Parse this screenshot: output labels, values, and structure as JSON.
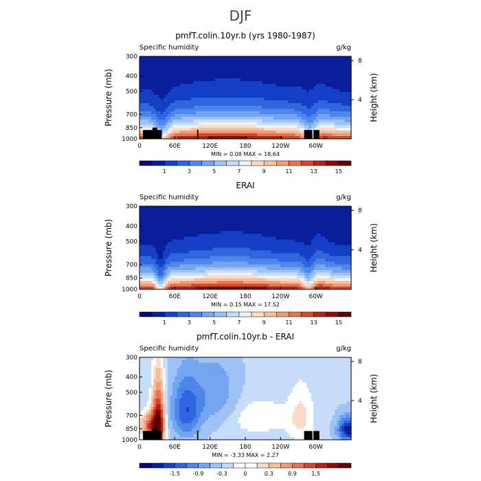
{
  "figure": {
    "title": "DJF"
  },
  "chart_data": [
    {
      "type": "heatmap",
      "title": "pmfT.colin.10yr.b (yrs 1980-1987)",
      "left_label": "Specific humidity",
      "right_label": "g/kg",
      "ylabel": "Pressure (mb)",
      "y2label": "Height (km)",
      "x_ticks": [
        "0",
        "60E",
        "120E",
        "180",
        "120W",
        "60W"
      ],
      "x_tick_values": [
        0,
        60,
        120,
        180,
        240,
        300
      ],
      "xlim": [
        0,
        360
      ],
      "y_ticks": [
        "300",
        "400",
        "500",
        "700",
        "850",
        "1000"
      ],
      "y_tick_values": [
        300,
        400,
        500,
        700,
        850,
        1000
      ],
      "y_scale": "log",
      "ylim": [
        1000,
        300
      ],
      "height_ticks": [
        "8",
        "4"
      ],
      "height_tick_values": [
        8,
        4
      ],
      "stats": "MIN =    0.08   MAX =   18.64",
      "min": 0.08,
      "max": 18.64,
      "colorbar_labels": [
        "1",
        "3",
        "5",
        "7",
        "9",
        "11",
        "13",
        "15"
      ],
      "colorbar_levels": [
        0,
        1,
        2,
        3,
        4,
        5,
        6,
        7,
        8,
        9,
        10,
        11,
        12,
        13,
        14,
        15,
        16
      ],
      "field": "model"
    },
    {
      "type": "heatmap",
      "title": "ERAI",
      "left_label": "Specific humidity",
      "right_label": "g/kg",
      "ylabel": "Pressure (mb)",
      "y2label": "Height (km)",
      "x_ticks": [
        "0",
        "60E",
        "120E",
        "180",
        "120W",
        "60W"
      ],
      "x_tick_values": [
        0,
        60,
        120,
        180,
        240,
        300
      ],
      "xlim": [
        0,
        360
      ],
      "y_ticks": [
        "300",
        "400",
        "500",
        "700",
        "850",
        "1000"
      ],
      "y_tick_values": [
        300,
        400,
        500,
        700,
        850,
        1000
      ],
      "y_scale": "log",
      "ylim": [
        1000,
        300
      ],
      "height_ticks": [
        "8",
        "4"
      ],
      "height_tick_values": [
        8,
        4
      ],
      "stats": "MIN =    0.15   MAX =   17.52",
      "min": 0.15,
      "max": 17.52,
      "colorbar_labels": [
        "1",
        "3",
        "5",
        "7",
        "9",
        "11",
        "13",
        "15"
      ],
      "colorbar_levels": [
        0,
        1,
        2,
        3,
        4,
        5,
        6,
        7,
        8,
        9,
        10,
        11,
        12,
        13,
        14,
        15,
        16
      ],
      "field": "obs"
    },
    {
      "type": "heatmap",
      "title": "pmfT.colin.10yr.b - ERAI",
      "left_label": "Specific humidity",
      "right_label": "g/kg",
      "ylabel": "Pressure (mb)",
      "y2label": "Height (km)",
      "x_ticks": [
        "0",
        "60E",
        "120E",
        "180",
        "120W",
        "60W"
      ],
      "x_tick_values": [
        0,
        60,
        120,
        180,
        240,
        300
      ],
      "xlim": [
        0,
        360
      ],
      "y_ticks": [
        "300",
        "400",
        "500",
        "700",
        "850",
        "1000"
      ],
      "y_tick_values": [
        300,
        400,
        500,
        700,
        850,
        1000
      ],
      "y_scale": "log",
      "ylim": [
        1000,
        300
      ],
      "height_ticks": [
        "8",
        "4"
      ],
      "height_tick_values": [
        8,
        4
      ],
      "stats": "MIN =   -3.33   MAX =    2.27",
      "min": -3.33,
      "max": 2.27,
      "colorbar_labels": [
        "-1.5",
        "-0.9",
        "-0.3",
        "0",
        "0.3",
        "0.9",
        "1.5"
      ],
      "colorbar_levels": [
        -2.1,
        -1.8,
        -1.5,
        -1.2,
        -0.9,
        -0.6,
        -0.3,
        -0.1,
        0,
        0.1,
        0.3,
        0.6,
        0.9,
        1.2,
        1.5,
        1.8,
        2.1
      ],
      "field": "diff"
    }
  ],
  "colors": {
    "scale": [
      "#08086e",
      "#0a1e9c",
      "#1440c8",
      "#2e66e0",
      "#4f86ea",
      "#74a5f0",
      "#9ec2f5",
      "#c6dcf8",
      "#eef2f8",
      "#f8dcc8",
      "#f5bea0",
      "#f09c78",
      "#e67450",
      "#d24a2e",
      "#b42418",
      "#8c0c0c",
      "#5c0404"
    ],
    "diff_scale": [
      "#08086e",
      "#0a1e9c",
      "#1440c8",
      "#2e66e0",
      "#4f86ea",
      "#74a5f0",
      "#9ec2f5",
      "#c6dcf8",
      "#ffffff",
      "#ffffff",
      "#f8dcc8",
      "#f5bea0",
      "#f09c78",
      "#e67450",
      "#d24a2e",
      "#b42418",
      "#8c0c0c",
      "#5c0404"
    ],
    "terrain": "#000000"
  }
}
